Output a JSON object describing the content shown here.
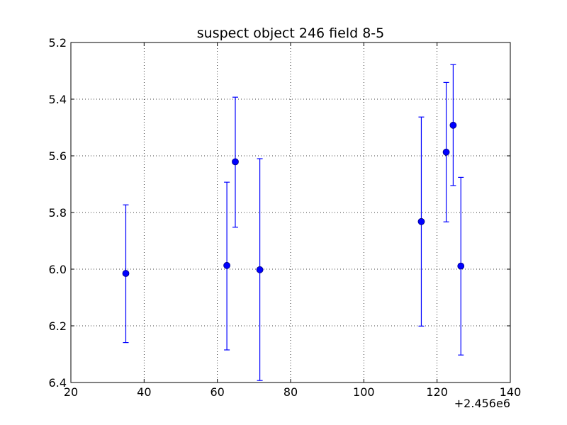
{
  "chart_data": {
    "type": "scatter",
    "title": "suspect object 246 field 8-5",
    "xlabel": "",
    "ylabel": "",
    "x_offset_label": "+2.456e6",
    "xlim": [
      20,
      140
    ],
    "ylim": [
      5.2,
      6.4
    ],
    "y_inverted": true,
    "grid": true,
    "xticks": [
      20,
      40,
      60,
      80,
      100,
      120,
      140
    ],
    "xtick_labels": [
      "20",
      "40",
      "60",
      "80",
      "100",
      "120",
      "140"
    ],
    "yticks": [
      5.2,
      5.4,
      5.6,
      5.8,
      6.0,
      6.2,
      6.4
    ],
    "ytick_labels": [
      "5.2",
      "5.4",
      "5.6",
      "5.8",
      "6.0",
      "6.2",
      "6.4"
    ],
    "color": "#0000ff",
    "points": [
      {
        "x": 35.0,
        "y": 6.015,
        "yerr_low": 5.773,
        "yerr_high": 6.259
      },
      {
        "x": 62.6,
        "y": 5.987,
        "yerr_low": 5.693,
        "yerr_high": 6.285
      },
      {
        "x": 64.9,
        "y": 5.621,
        "yerr_low": 5.393,
        "yerr_high": 5.852
      },
      {
        "x": 71.6,
        "y": 6.002,
        "yerr_low": 5.61,
        "yerr_high": 6.393
      },
      {
        "x": 115.7,
        "y": 5.832,
        "yerr_low": 5.463,
        "yerr_high": 6.201
      },
      {
        "x": 122.5,
        "y": 5.587,
        "yerr_low": 5.341,
        "yerr_high": 5.833
      },
      {
        "x": 124.4,
        "y": 5.492,
        "yerr_low": 5.278,
        "yerr_high": 5.705
      },
      {
        "x": 126.5,
        "y": 5.989,
        "yerr_low": 5.676,
        "yerr_high": 6.303
      }
    ]
  }
}
